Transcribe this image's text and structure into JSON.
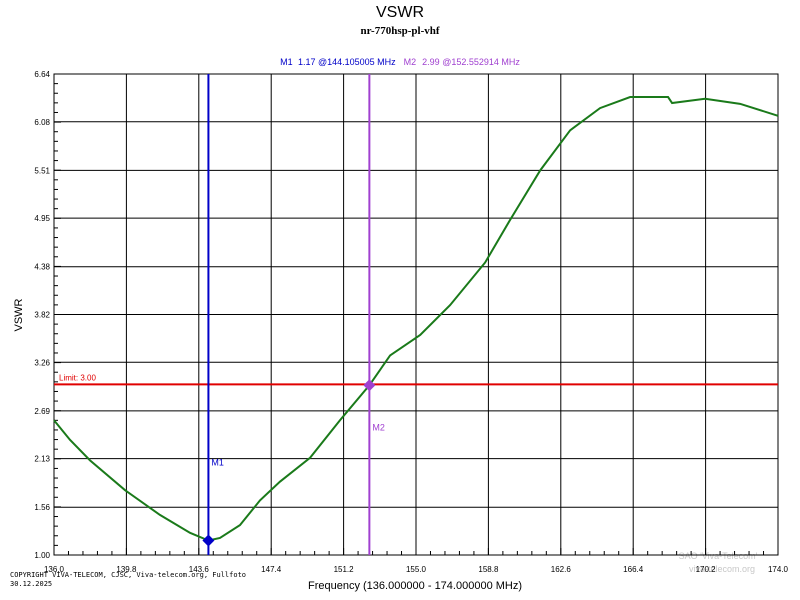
{
  "chart_data": {
    "type": "line",
    "title": "VSWR",
    "subtitle": "nr-770hsp-pl-vhf",
    "x_label": "Frequency (136.000000 - 174.000000 MHz)",
    "y_label": "VSWR",
    "xlim": [
      136,
      174
    ],
    "ylim": [
      1,
      6.64
    ],
    "xticks": [
      {
        "value": 136,
        "label": "136.0"
      },
      139.8,
      143.6,
      147.4,
      151.2,
      {
        "value": 155,
        "label": "155.0"
      },
      158.8,
      162.6,
      166.4,
      170.2,
      {
        "value": 174,
        "label": "174.0"
      }
    ],
    "yticks": [
      {
        "value": 1,
        "label": "1.00"
      },
      1.56,
      2.13,
      2.69,
      3.26,
      3.82,
      4.38,
      4.95,
      5.51,
      6.08,
      6.64
    ],
    "grid": true,
    "x": [
      136.0,
      136.84,
      137.89,
      139.73,
      141.56,
      143.14,
      144.105005,
      144.71,
      145.76,
      146.81,
      147.86,
      149.44,
      151.01,
      152.552914,
      153.64,
      155.22,
      156.79,
      158.63,
      159.94,
      161.52,
      163.09,
      164.66,
      166.24,
      168.23,
      168.44,
      170.17,
      172.01,
      174.0
    ],
    "series": [
      {
        "color": "#1a7a1a",
        "values": [
          2.58,
          2.35,
          2.11,
          1.76,
          1.47,
          1.26,
          1.17,
          1.2,
          1.35,
          1.64,
          1.86,
          2.14,
          2.58,
          2.99,
          3.34,
          3.58,
          3.93,
          4.43,
          4.93,
          5.51,
          5.98,
          6.24,
          6.37,
          6.37,
          6.3,
          6.35,
          6.29,
          6.15
        ]
      }
    ],
    "limit": {
      "value": 3,
      "label": "Limit: 3.00",
      "color": "#e00000"
    },
    "markers": [
      {
        "name": "M1",
        "x": 144.105005,
        "value": 1.17,
        "label": "1.17 @144.105005 MHz",
        "color": "#0000c8"
      },
      {
        "name": "M2",
        "x": 152.552914,
        "value": 2.99,
        "label": "2.99 @152.552914 MHz",
        "color": "#a040d0"
      }
    ],
    "annotations": [
      "COPYRIGHT VIVA-TELECOM, CJSC, Viva-telecom.org, Fullfoto",
      "30.12.2025",
      "SAO 'Viva-Telecom'",
      "viva-telecom.org"
    ]
  }
}
